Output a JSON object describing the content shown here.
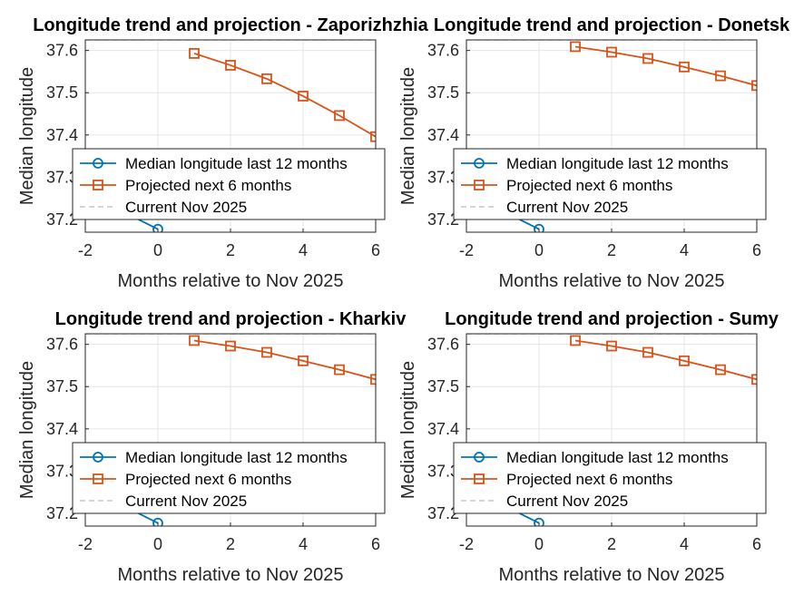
{
  "figure": {
    "background": "#ffffff"
  },
  "colors": {
    "history": "#0072BD",
    "projection": "#D95319",
    "current_line": "#C8C8C8",
    "axis": "#262626",
    "grid": "#E6E6E6"
  },
  "chart_data": [
    {
      "type": "line",
      "title": "Longitude trend and projection - Zaporizhzhia",
      "xlabel": "Months relative to Nov 2025",
      "ylabel": "Median longitude",
      "xlim": [
        -2,
        6
      ],
      "ylim": [
        37.17,
        37.625
      ],
      "xticks": [
        -2,
        0,
        2,
        4,
        6
      ],
      "yticks": [
        37.2,
        37.3,
        37.4,
        37.5,
        37.6
      ],
      "xtick_labels": [
        "-2",
        "0",
        "2",
        "4",
        "6"
      ],
      "ytick_labels": [
        "37.2",
        "37.3",
        "37.4",
        "37.5",
        "37.6"
      ],
      "grid": true,
      "legend_location": "bottom",
      "series": [
        {
          "name": "Median longitude last 12 months",
          "marker": "circle",
          "x": [
            -2,
            -1,
            0
          ],
          "y": [
            37.26,
            37.22,
            37.177
          ]
        },
        {
          "name": "Projected next 6 months",
          "marker": "square",
          "x": [
            1,
            2,
            3,
            4,
            5,
            6
          ],
          "y": [
            37.593,
            37.565,
            37.533,
            37.492,
            37.446,
            37.396
          ]
        },
        {
          "name": "Current Nov 2025",
          "style": "dashed",
          "y_constant": 37.625
        }
      ]
    },
    {
      "type": "line",
      "title": "Longitude trend and projection - Donetsk",
      "xlabel": "Months relative to Nov 2025",
      "ylabel": "Median longitude",
      "xlim": [
        -2,
        6
      ],
      "ylim": [
        37.17,
        37.625
      ],
      "xticks": [
        -2,
        0,
        2,
        4,
        6
      ],
      "yticks": [
        37.2,
        37.3,
        37.4,
        37.5,
        37.6
      ],
      "xtick_labels": [
        "-2",
        "0",
        "2",
        "4",
        "6"
      ],
      "ytick_labels": [
        "37.2",
        "37.3",
        "37.4",
        "37.5",
        "37.6"
      ],
      "grid": true,
      "legend_location": "bottom",
      "series": [
        {
          "name": "Median longitude last 12 months",
          "marker": "circle",
          "x": [
            -2,
            -1,
            0
          ],
          "y": [
            37.26,
            37.22,
            37.177
          ]
        },
        {
          "name": "Projected next 6 months",
          "marker": "square",
          "x": [
            1,
            2,
            3,
            4,
            5,
            6
          ],
          "y": [
            37.609,
            37.596,
            37.581,
            37.561,
            37.54,
            37.517
          ]
        },
        {
          "name": "Current Nov 2025",
          "style": "dashed",
          "y_constant": 37.625
        }
      ]
    },
    {
      "type": "line",
      "title": "Longitude trend and projection - Kharkiv",
      "xlabel": "Months relative to Nov 2025",
      "ylabel": "Median longitude",
      "xlim": [
        -2,
        6
      ],
      "ylim": [
        37.17,
        37.625
      ],
      "xticks": [
        -2,
        0,
        2,
        4,
        6
      ],
      "yticks": [
        37.2,
        37.3,
        37.4,
        37.5,
        37.6
      ],
      "xtick_labels": [
        "-2",
        "0",
        "2",
        "4",
        "6"
      ],
      "ytick_labels": [
        "37.2",
        "37.3",
        "37.4",
        "37.5",
        "37.6"
      ],
      "grid": true,
      "legend_location": "bottom",
      "series": [
        {
          "name": "Median longitude last 12 months",
          "marker": "circle",
          "x": [
            -2,
            -1,
            0
          ],
          "y": [
            37.26,
            37.22,
            37.177
          ]
        },
        {
          "name": "Projected next 6 months",
          "marker": "square",
          "x": [
            1,
            2,
            3,
            4,
            5,
            6
          ],
          "y": [
            37.609,
            37.596,
            37.581,
            37.561,
            37.54,
            37.517
          ]
        },
        {
          "name": "Current Nov 2025",
          "style": "dashed",
          "y_constant": 37.625
        }
      ]
    },
    {
      "type": "line",
      "title": "Longitude trend and projection - Sumy",
      "xlabel": "Months relative to Nov 2025",
      "ylabel": "Median longitude",
      "xlim": [
        -2,
        6
      ],
      "ylim": [
        37.17,
        37.625
      ],
      "xticks": [
        -2,
        0,
        2,
        4,
        6
      ],
      "yticks": [
        37.2,
        37.3,
        37.4,
        37.5,
        37.6
      ],
      "xtick_labels": [
        "-2",
        "0",
        "2",
        "4",
        "6"
      ],
      "ytick_labels": [
        "37.2",
        "37.3",
        "37.4",
        "37.5",
        "37.6"
      ],
      "grid": true,
      "legend_location": "bottom",
      "series": [
        {
          "name": "Median longitude last 12 months",
          "marker": "circle",
          "x": [
            -2,
            -1,
            0
          ],
          "y": [
            37.26,
            37.22,
            37.177
          ]
        },
        {
          "name": "Projected next 6 months",
          "marker": "square",
          "x": [
            1,
            2,
            3,
            4,
            5,
            6
          ],
          "y": [
            37.609,
            37.596,
            37.581,
            37.561,
            37.54,
            37.517
          ]
        },
        {
          "name": "Current Nov 2025",
          "style": "dashed",
          "y_constant": 37.625
        }
      ]
    }
  ]
}
